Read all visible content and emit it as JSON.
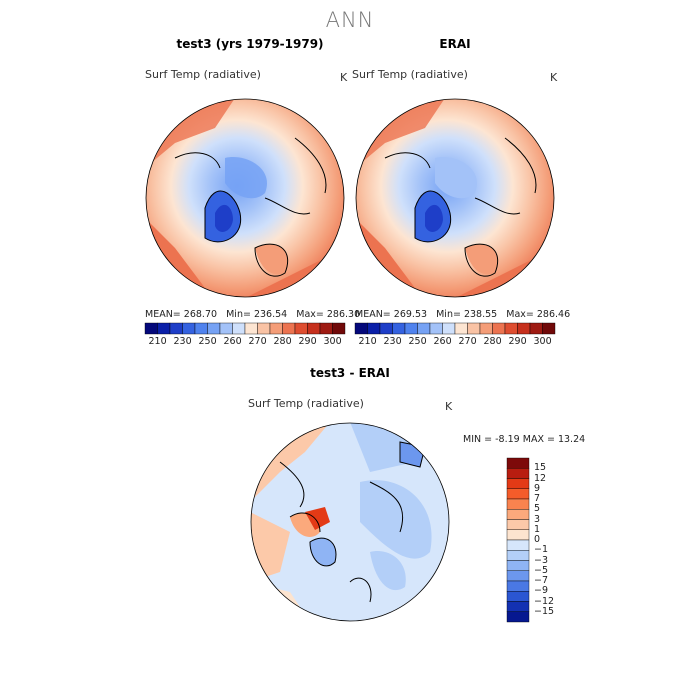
{
  "title": "ANN",
  "panels": [
    {
      "title": "test3 (yrs 1979-1979)",
      "variable": "Surf Temp (radiative)",
      "unit": "K",
      "mean": "268.70",
      "min": "236.54",
      "max": "286.30"
    },
    {
      "title": "ERAI",
      "variable": "Surf Temp (radiative)",
      "unit": "K",
      "mean": "269.53",
      "min": "238.55",
      "max": "286.46"
    }
  ],
  "top_colorbar": {
    "labels": [
      "210",
      "230",
      "250",
      "260",
      "270",
      "280",
      "290",
      "300"
    ],
    "colors": [
      "#04087a",
      "#0a1fa8",
      "#1e3ec8",
      "#3462e0",
      "#4f82ee",
      "#76a2f4",
      "#a3c2f8",
      "#cfe0fb",
      "#fde5d2",
      "#f9c3a5",
      "#f49d78",
      "#ec7350",
      "#de4d30",
      "#c6301d",
      "#9e1a12",
      "#700909"
    ]
  },
  "diff_panel": {
    "title": "test3 - ERAI",
    "variable": "Surf Temp (radiative)",
    "unit": "K",
    "min_label": "MIN =",
    "min": "-8.19",
    "max_label": "MAX =",
    "max": "13.24"
  },
  "diff_colorbar": {
    "labels": [
      "15",
      "12",
      "9",
      "7",
      "5",
      "3",
      "1",
      "0",
      "−1",
      "−3",
      "−5",
      "−7",
      "−9",
      "−12",
      "−15"
    ],
    "colors": [
      "#7d0a0a",
      "#b81d10",
      "#e33a16",
      "#f45c2a",
      "#f9834f",
      "#fba97c",
      "#fcc9a9",
      "#fde4cf",
      "#d6e6fb",
      "#b3cff8",
      "#8fb4f4",
      "#6c97ee",
      "#4a78e4",
      "#2b56d2",
      "#1331b2",
      "#061890"
    ]
  }
}
